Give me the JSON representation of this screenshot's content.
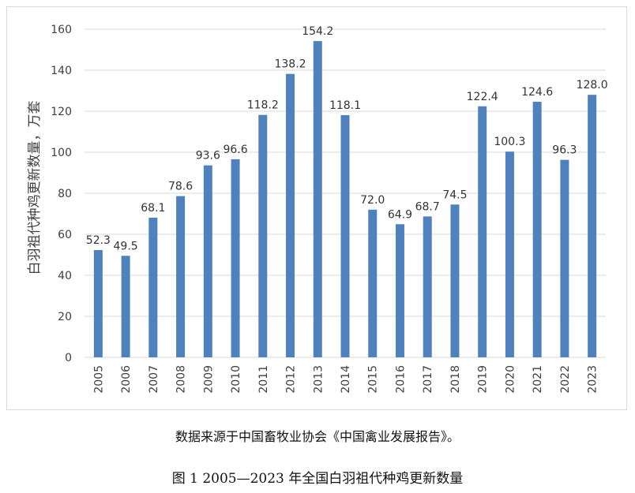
{
  "chart_data": {
    "type": "bar",
    "categories": [
      "2005",
      "2006",
      "2007",
      "2008",
      "2009",
      "2010",
      "2011",
      "2012",
      "2013",
      "2014",
      "2015",
      "2016",
      "2017",
      "2018",
      "2019",
      "2020",
      "2021",
      "2022",
      "2023"
    ],
    "values": [
      52.3,
      49.5,
      68.1,
      78.6,
      93.6,
      96.6,
      118.2,
      138.2,
      154.2,
      118.1,
      72.0,
      64.9,
      68.7,
      74.5,
      122.4,
      100.3,
      124.6,
      96.3,
      128.0
    ],
    "value_labels": [
      "52.3",
      "49.5",
      "68.1",
      "78.6",
      "93.6",
      "96.6",
      "118.2",
      "138.2",
      "154.2",
      "118.1",
      "72.0",
      "64.9",
      "68.7",
      "74.5",
      "122.4",
      "100.3",
      "124.6",
      "96.3",
      "128.0"
    ],
    "y_ticks": [
      0,
      20,
      40,
      60,
      80,
      100,
      120,
      140,
      160
    ],
    "ylim": [
      0,
      160
    ],
    "ylabel": "白羽祖代种鸡更新数量，万套",
    "xlabel": "",
    "grid": true,
    "bar_color": "#4f81bd",
    "grid_color": "#d9d9d9"
  },
  "source_note": "数据来源于中国畜牧业协会《中国禽业发展报告》。",
  "figure_caption": "图 1 2005—2023 年全国白羽祖代种鸡更新数量"
}
